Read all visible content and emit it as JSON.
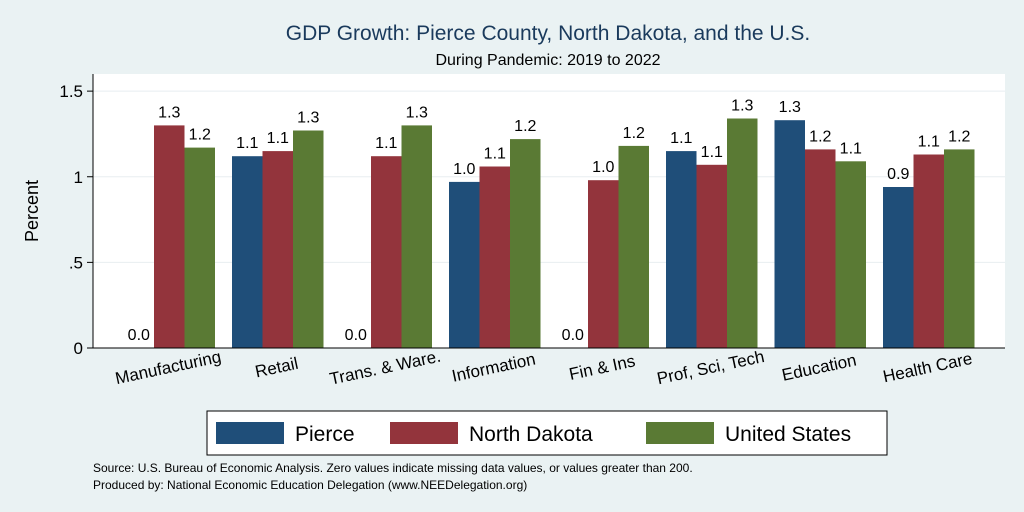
{
  "chart_data": {
    "type": "bar",
    "title": "GDP Growth: Pierce County, North Dakota, and the U.S.",
    "subtitle": "During Pandemic: 2019 to 2022",
    "ylabel": "Percent",
    "xlabel": "",
    "ylim": [
      0,
      1.6
    ],
    "yticks": [
      0,
      0.5,
      1,
      1.5
    ],
    "ytick_labels": [
      "0",
      ".5",
      "1",
      "1.5"
    ],
    "grid": true,
    "categories": [
      "Manufacturing",
      "Retail",
      "Trans. & Ware.",
      "Information",
      "Fin & Ins",
      "Prof, Sci, Tech",
      "Education",
      "Health Care"
    ],
    "series": [
      {
        "name": "Pierce",
        "color": "#1f4e79",
        "values": [
          0,
          1.12,
          0,
          0.97,
          0,
          1.15,
          1.33,
          0.94
        ],
        "labels": [
          "0.0",
          "1.1",
          "0.0",
          "1.0",
          "0.0",
          "1.1",
          "1.3",
          "0.9"
        ]
      },
      {
        "name": "North Dakota",
        "color": "#93343c",
        "values": [
          1.3,
          1.15,
          1.12,
          1.06,
          0.98,
          1.07,
          1.16,
          1.13
        ],
        "labels": [
          "1.3",
          "1.1",
          "1.1",
          "1.1",
          "1.0",
          "1.1",
          "1.2",
          "1.1"
        ]
      },
      {
        "name": "United States",
        "color": "#5a7a34",
        "values": [
          1.17,
          1.27,
          1.3,
          1.22,
          1.18,
          1.34,
          1.09,
          1.16
        ],
        "labels": [
          "1.2",
          "1.3",
          "1.3",
          "1.2",
          "1.2",
          "1.3",
          "1.1",
          "1.2"
        ]
      }
    ],
    "legend_position": "bottom"
  },
  "source_line1": "Source: U.S. Bureau of Economic Analysis. Zero values indicate missing data values, or values greater than 200.",
  "source_line2": "Produced by: National Economic Education Delegation (www.NEEDelegation.org)"
}
